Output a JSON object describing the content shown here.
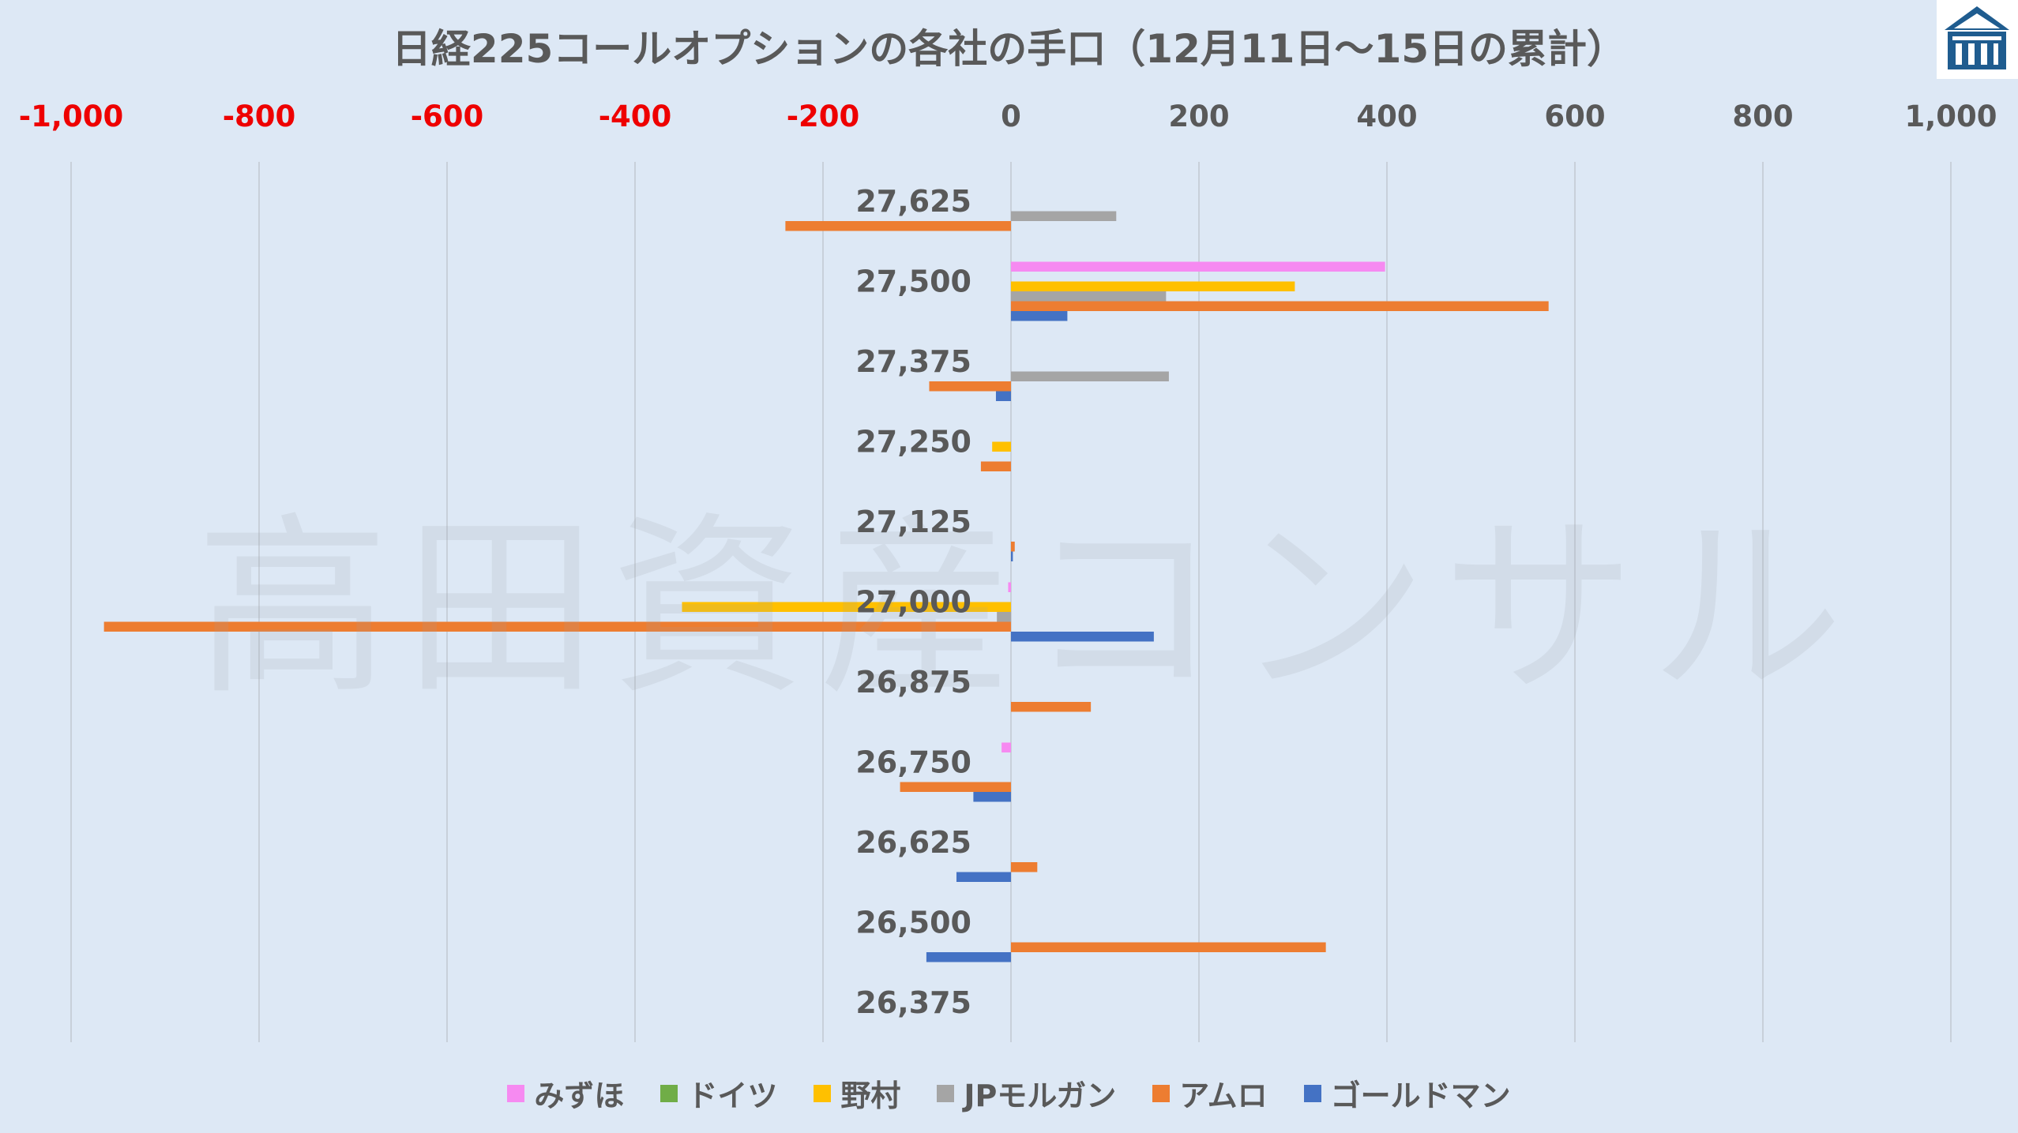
{
  "chart_data": {
    "type": "bar",
    "orientation": "horizontal",
    "title": "日経225コールオプションの各社の手口（12月11日～15日の累計）",
    "xlim": [
      -1000,
      1000
    ],
    "x_ticks": [
      {
        "value": -1000,
        "label": "-1,000"
      },
      {
        "value": -800,
        "label": "-800"
      },
      {
        "value": -600,
        "label": "-600"
      },
      {
        "value": -400,
        "label": "-400"
      },
      {
        "value": -200,
        "label": "-200"
      },
      {
        "value": 0,
        "label": "0"
      },
      {
        "value": 200,
        "label": "200"
      },
      {
        "value": 400,
        "label": "400"
      },
      {
        "value": 600,
        "label": "600"
      },
      {
        "value": 800,
        "label": "800"
      },
      {
        "value": 1000,
        "label": "1,000"
      }
    ],
    "x_axis_position": "top",
    "negative_tick_color": "#ee0000",
    "positive_tick_color": "#595959",
    "grid": "vertical",
    "legend_position": "bottom",
    "categories": [
      "27,625",
      "27,500",
      "27,375",
      "27,250",
      "27,125",
      "27,000",
      "26,875",
      "26,750",
      "26,625",
      "26,500",
      "26,375"
    ],
    "series": [
      {
        "name": "みずほ",
        "color": "#f68af1",
        "values": [
          0,
          398,
          0,
          0,
          0,
          -3,
          0,
          -10,
          0,
          0,
          0
        ]
      },
      {
        "name": "ドイツ",
        "color": "#70ad47",
        "values": [
          0,
          0,
          0,
          0,
          0,
          0,
          0,
          0,
          0,
          0,
          0
        ]
      },
      {
        "name": "野村",
        "color": "#ffc000",
        "values": [
          0,
          302,
          0,
          -20,
          0,
          -350,
          0,
          0,
          0,
          0,
          0
        ]
      },
      {
        "name": "JPモルガン",
        "color": "#a5a5a5",
        "values": [
          112,
          165,
          168,
          0,
          0,
          -15,
          0,
          0,
          0,
          0,
          0
        ]
      },
      {
        "name": "アムロ",
        "color": "#ed7d31",
        "values": [
          -240,
          572,
          -87,
          -32,
          4,
          -965,
          85,
          -118,
          28,
          335,
          0
        ]
      },
      {
        "name": "ゴールドマン",
        "color": "#4472c4",
        "values": [
          0,
          60,
          -16,
          0,
          2,
          152,
          0,
          -40,
          -58,
          -90,
          0
        ]
      }
    ]
  },
  "watermark": {
    "text": "高田資産コンサル"
  },
  "logo": {
    "icon": "building-icon",
    "color": "#1f5c8f"
  }
}
